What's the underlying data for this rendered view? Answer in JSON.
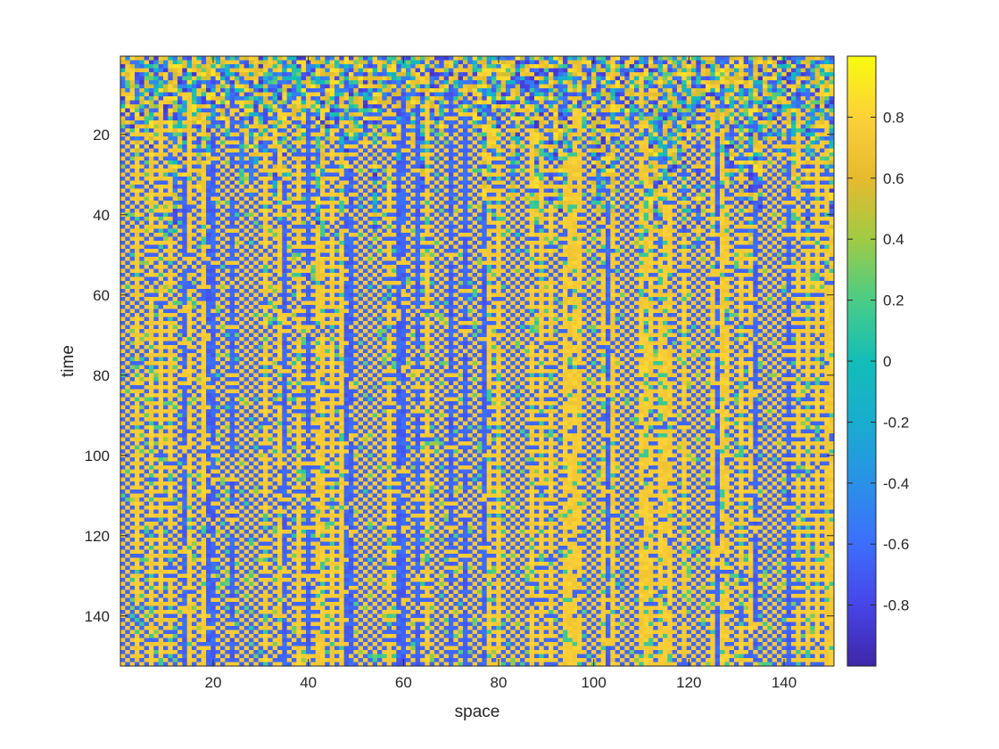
{
  "chart_data": {
    "type": "heatmap",
    "xlabel": "space",
    "ylabel": "time",
    "x_range": [
      1,
      150
    ],
    "y_range": [
      1,
      152
    ],
    "y_direction": "reversed",
    "x_ticks": [
      20,
      40,
      60,
      80,
      100,
      120,
      140
    ],
    "y_ticks": [
      20,
      40,
      60,
      80,
      100,
      120,
      140
    ],
    "colormap": "parula",
    "clim": [
      -1,
      1
    ],
    "colorbar_ticks": [
      0.8,
      0.6,
      0.4,
      0.2,
      0,
      -0.2,
      -0.4,
      -0.6,
      -0.8
    ],
    "colorbar_tick_labels": [
      "0.8",
      "0.6",
      "0.4",
      "0.2",
      "0",
      "-0.2",
      "-0.4",
      "-0.6",
      "-0.8"
    ],
    "dominant_values": [
      0.75,
      -0.65
    ],
    "colorbar_placement": "right",
    "grid": false,
    "pattern": "stripe pattern alternating between about 0.75 (yellow-orange) and about -0.65 (blue) along space, with a noisy transient band during roughly the first 15–50 time steps"
  },
  "colors": {
    "background": "#ffffff",
    "axis": "#262626",
    "high": "#f5bf38",
    "low": "#3d63e8",
    "mid": "#17b2b7"
  }
}
